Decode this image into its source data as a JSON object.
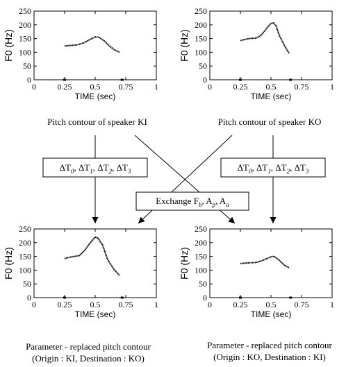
{
  "panels": [
    {
      "id": "ki",
      "ylabel": "F0 (Hz)",
      "xlabel": "TIME (sec)",
      "xticks": [
        "0",
        "0.25",
        "0.5",
        "0.75",
        "1"
      ],
      "yticks": [
        "0",
        "50",
        "100",
        "150",
        "200",
        "250"
      ],
      "caption": [
        "Pitch contour of speaker KI"
      ],
      "marks": [
        0.25,
        0.72
      ],
      "points": [
        [
          0.25,
          123
        ],
        [
          0.3,
          125
        ],
        [
          0.35,
          127
        ],
        [
          0.4,
          133
        ],
        [
          0.45,
          145
        ],
        [
          0.5,
          156
        ],
        [
          0.53,
          155
        ],
        [
          0.57,
          143
        ],
        [
          0.62,
          122
        ],
        [
          0.66,
          108
        ],
        [
          0.7,
          100
        ]
      ]
    },
    {
      "id": "ko",
      "ylabel": "F0 (Hz)",
      "xlabel": "TIME (sec)",
      "xticks": [
        "0",
        "0.25",
        "0.5",
        "0.75",
        "1"
      ],
      "yticks": [
        "0",
        "50",
        "100",
        "150",
        "200",
        "250"
      ],
      "caption": [
        "Pitch contour of speaker KO"
      ],
      "marks": [
        0.25,
        0.66
      ],
      "points": [
        [
          0.25,
          143
        ],
        [
          0.28,
          146
        ],
        [
          0.32,
          150
        ],
        [
          0.38,
          152
        ],
        [
          0.42,
          162
        ],
        [
          0.46,
          185
        ],
        [
          0.5,
          205
        ],
        [
          0.52,
          207
        ],
        [
          0.54,
          198
        ],
        [
          0.57,
          160
        ],
        [
          0.61,
          125
        ],
        [
          0.65,
          95
        ]
      ]
    },
    {
      "id": "replaced-ki-ko",
      "ylabel": "F0 (Hz)",
      "xlabel": "TIME (sec)",
      "xticks": [
        "0",
        "0.25",
        "0.5",
        "0.75",
        "1"
      ],
      "yticks": [
        "0",
        "50",
        "100",
        "150",
        "200",
        "250"
      ],
      "caption": [
        "Parameter - replaced pitch contour",
        "(Origin : KI, Destination : KO)"
      ],
      "marks": [
        0.25,
        0.72
      ],
      "points": [
        [
          0.25,
          142
        ],
        [
          0.28,
          146
        ],
        [
          0.33,
          150
        ],
        [
          0.37,
          153
        ],
        [
          0.41,
          170
        ],
        [
          0.46,
          200
        ],
        [
          0.5,
          220
        ],
        [
          0.52,
          218
        ],
        [
          0.56,
          192
        ],
        [
          0.6,
          140
        ],
        [
          0.65,
          105
        ],
        [
          0.7,
          80
        ]
      ]
    },
    {
      "id": "replaced-ko-ki",
      "ylabel": "F0 (Hz)",
      "xlabel": "TIME (sec)",
      "xticks": [
        "0",
        "0.25",
        "0.5",
        "0.75",
        "1"
      ],
      "yticks": [
        "0",
        "50",
        "100",
        "150",
        "200",
        "250"
      ],
      "caption": [
        "Parameter - replaced pitch contour",
        "(Origin : KO, Destination : KI)"
      ],
      "marks": [
        0.25,
        0.66
      ],
      "points": [
        [
          0.25,
          124
        ],
        [
          0.3,
          126
        ],
        [
          0.38,
          128
        ],
        [
          0.43,
          135
        ],
        [
          0.47,
          143
        ],
        [
          0.51,
          150
        ],
        [
          0.53,
          149
        ],
        [
          0.57,
          135
        ],
        [
          0.61,
          118
        ],
        [
          0.65,
          108
        ]
      ]
    }
  ],
  "labels": {
    "delta_left": [
      "ΔT",
      "0",
      ", ΔT",
      "1",
      ", ΔT",
      "2",
      ", ΔT",
      "3"
    ],
    "delta_right": [
      "ΔT",
      "0",
      ", ΔT",
      "1",
      ", ΔT",
      "2",
      ", ΔT",
      "3"
    ],
    "exchange": [
      "Exchange F",
      "b",
      ", A",
      "p",
      ", A",
      "a"
    ]
  }
}
